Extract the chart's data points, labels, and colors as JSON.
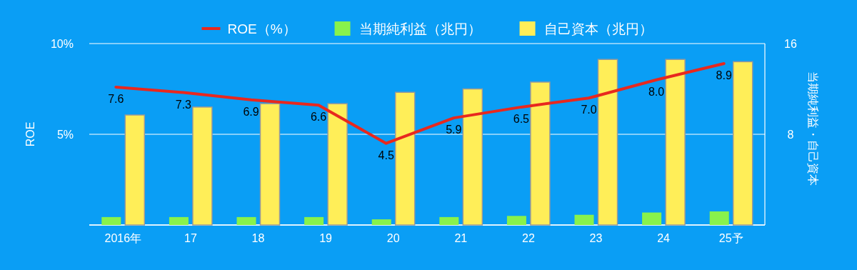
{
  "chart_data": {
    "type": "bar",
    "ylabel": "ROE",
    "y2label": "当期純利益・自己資本",
    "categories": [
      "2016年",
      "17",
      "18",
      "19",
      "20",
      "21",
      "22",
      "23",
      "24",
      "25予"
    ],
    "series": [
      {
        "name": "ROE（%）",
        "type": "line",
        "color": "#e8281e",
        "values": [
          7.6,
          7.3,
          6.9,
          6.6,
          4.5,
          5.9,
          6.5,
          7.0,
          8.0,
          8.9
        ],
        "value_labels": [
          "7.6",
          "7.3",
          "6.9",
          "6.6",
          "4.5",
          "5.9",
          "6.5",
          "7.0",
          "8.0",
          "8.9"
        ]
      },
      {
        "name": "当期純利益（兆円）",
        "axis": "y2",
        "color": "#88f24c",
        "values": [
          0.7,
          0.7,
          0.7,
          0.7,
          0.5,
          0.7,
          0.8,
          0.9,
          1.1,
          1.2
        ]
      },
      {
        "name": "自己資本（兆円）",
        "axis": "y2",
        "color": "#ffee58",
        "values": [
          9.7,
          10.4,
          10.7,
          10.7,
          11.7,
          12.0,
          12.6,
          14.6,
          14.6,
          14.4
        ]
      }
    ],
    "ylim": [
      0,
      10
    ],
    "yticks": [
      {
        "value": 0,
        "label": null
      },
      {
        "value": 5,
        "label": "5%"
      },
      {
        "value": 10,
        "label": "10%"
      }
    ],
    "y2lim": [
      0,
      16
    ],
    "y2ticks": [
      8,
      16
    ],
    "grid": "y",
    "legend": "top"
  }
}
